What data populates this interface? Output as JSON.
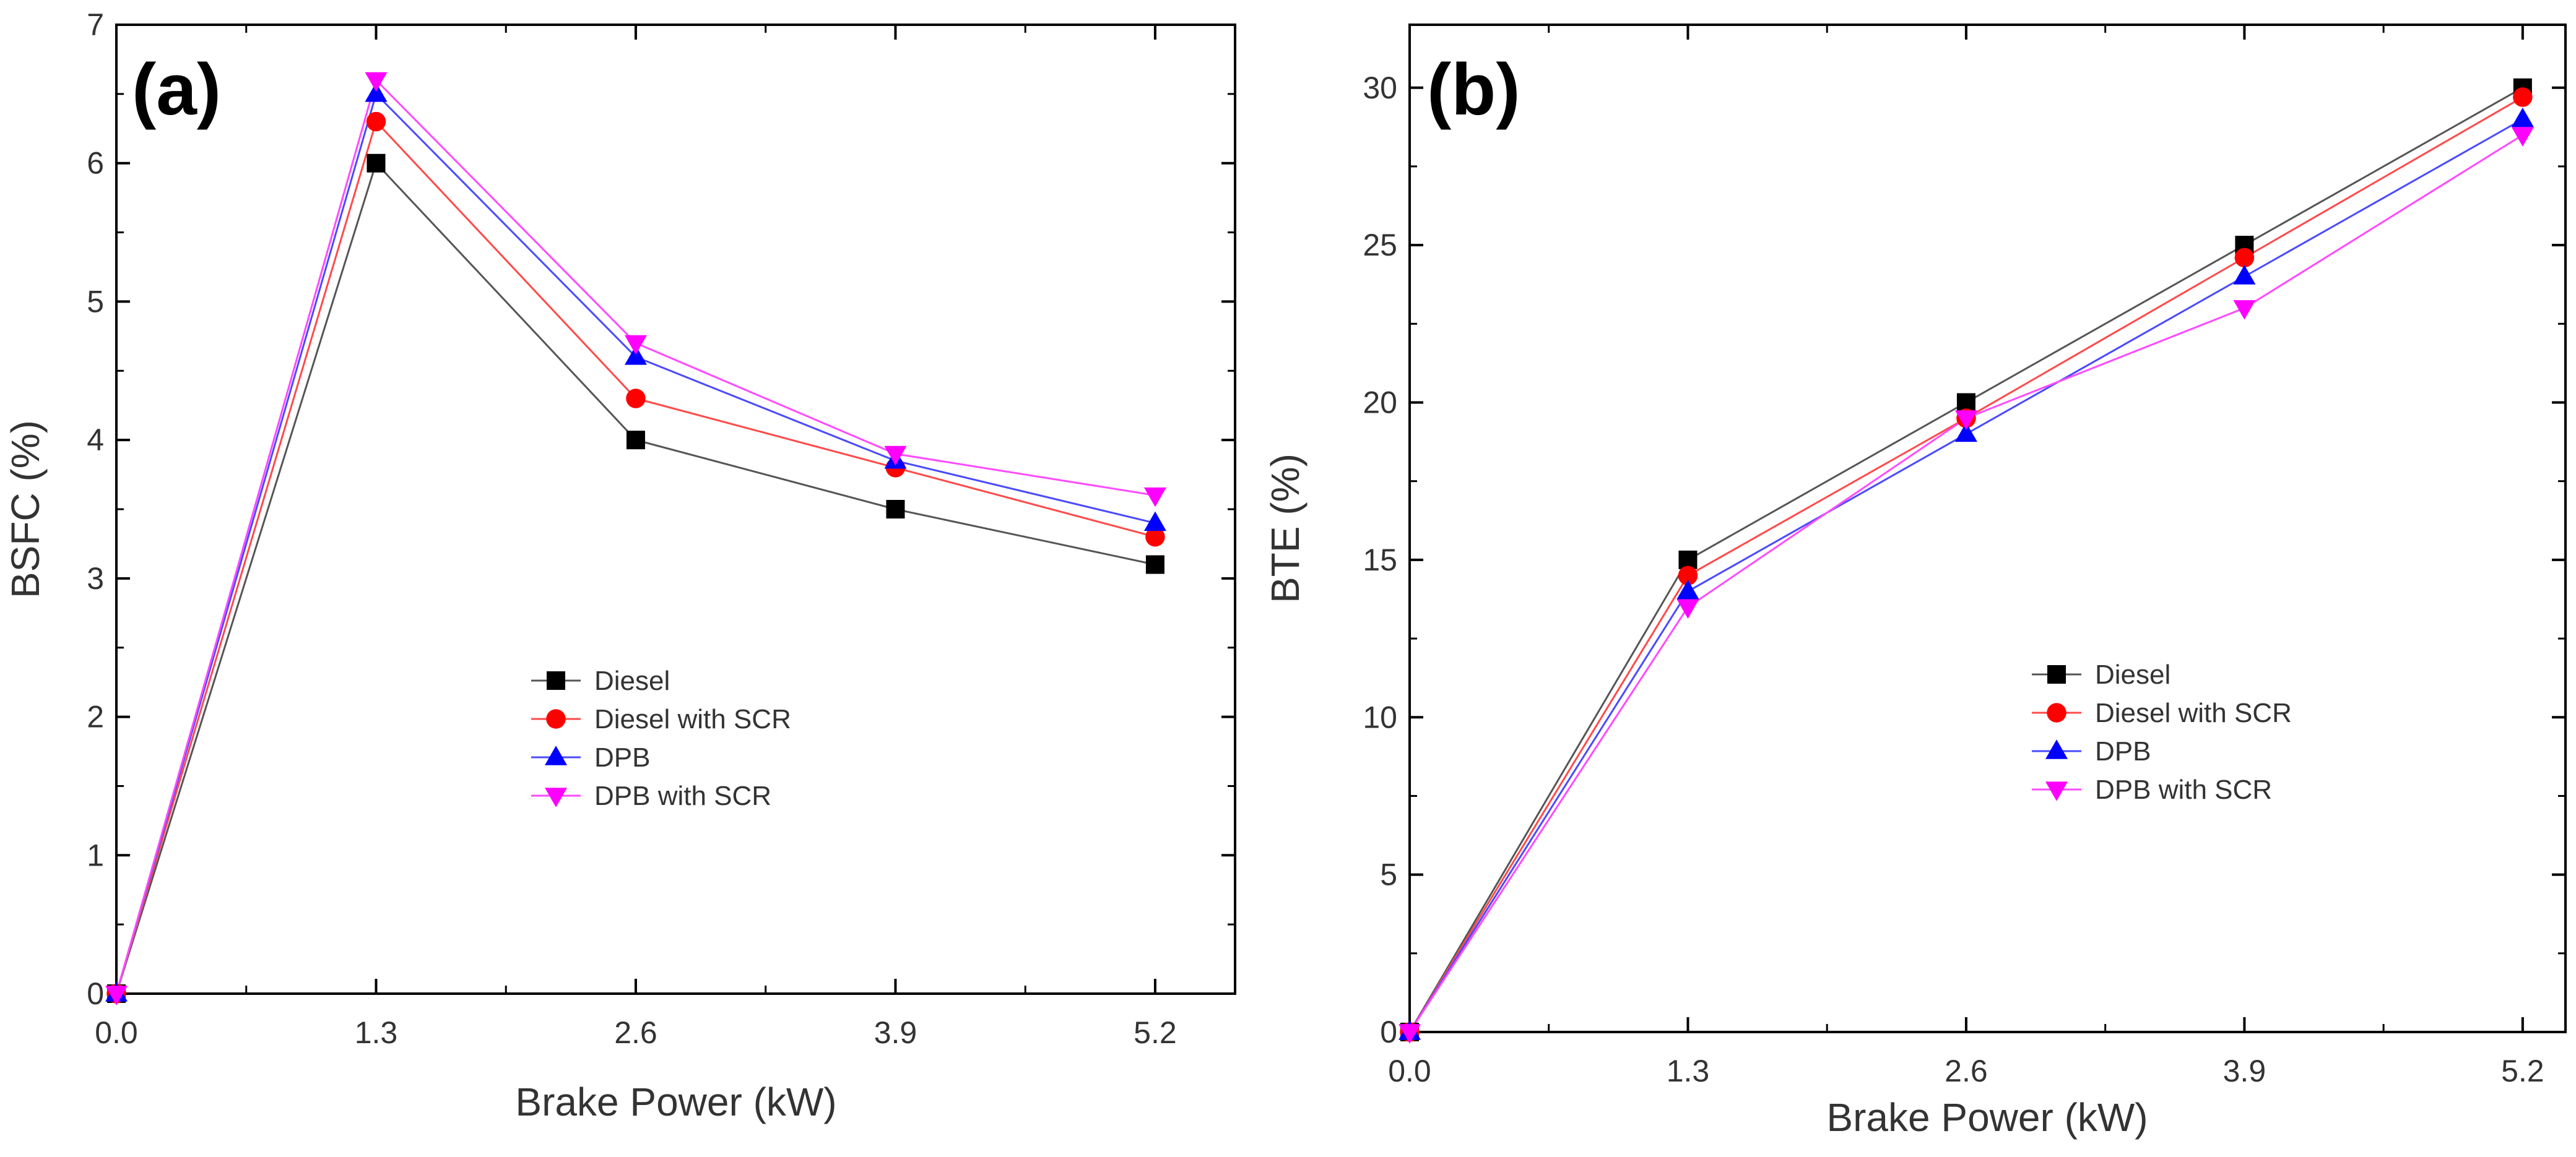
{
  "chart_data": [
    {
      "type": "line",
      "panel_label": "(a)",
      "xlabel": "Brake Power (kW)",
      "ylabel": "BSFC (%)",
      "x": [
        0.0,
        1.3,
        2.6,
        3.9,
        5.2
      ],
      "x_tick_labels": [
        "0.0",
        "1.3",
        "2.6",
        "3.9",
        "5.2"
      ],
      "xlim": [
        0.0,
        5.6
      ],
      "ylim": [
        0,
        7
      ],
      "y_ticks": [
        0,
        1,
        2,
        3,
        4,
        5,
        6,
        7
      ],
      "y_tick_labels": [
        "0",
        "1",
        "2",
        "3",
        "4",
        "5",
        "6",
        "7"
      ],
      "grid": false,
      "legend_position": "center",
      "series": [
        {
          "name": "Diesel",
          "marker": "square",
          "color": "#000000",
          "line_color": "#555555",
          "values": [
            0,
            6.0,
            4.0,
            3.5,
            3.1
          ]
        },
        {
          "name": "Diesel with SCR",
          "marker": "circle",
          "color": "#ff0000",
          "line_color": "#ff4a4a",
          "values": [
            0,
            6.3,
            4.3,
            3.8,
            3.3
          ]
        },
        {
          "name": "DPB",
          "marker": "triangle-up",
          "color": "#0000ff",
          "line_color": "#4a4aff",
          "values": [
            0,
            6.5,
            4.6,
            3.85,
            3.4
          ]
        },
        {
          "name": "DPB with SCR",
          "marker": "triangle-down",
          "color": "#ff00ff",
          "line_color": "#ff4aff",
          "values": [
            0,
            6.6,
            4.7,
            3.9,
            3.6
          ]
        }
      ]
    },
    {
      "type": "line",
      "panel_label": "(b)",
      "xlabel": "Brake Power (kW)",
      "ylabel": "BTE (%)",
      "x": [
        0.0,
        1.3,
        2.6,
        3.9,
        5.2
      ],
      "x_tick_labels": [
        "0.0",
        "1.3",
        "2.6",
        "3.9",
        "5.2"
      ],
      "xlim": [
        0.0,
        5.4
      ],
      "ylim": [
        0,
        32
      ],
      "y_ticks": [
        0,
        5,
        10,
        15,
        20,
        25,
        30
      ],
      "y_tick_labels": [
        "0",
        "5",
        "10",
        "15",
        "20",
        "25",
        "30"
      ],
      "grid": false,
      "legend_position": "center-right",
      "series": [
        {
          "name": "Diesel",
          "marker": "square",
          "color": "#000000",
          "line_color": "#555555",
          "values": [
            0,
            15.0,
            20.0,
            25.0,
            30.0
          ]
        },
        {
          "name": "Diesel with SCR",
          "marker": "circle",
          "color": "#ff0000",
          "line_color": "#ff4a4a",
          "values": [
            0,
            14.5,
            19.5,
            24.6,
            29.7
          ]
        },
        {
          "name": "DPB",
          "marker": "triangle-up",
          "color": "#0000ff",
          "line_color": "#4a4aff",
          "values": [
            0,
            14.0,
            19.0,
            24.0,
            29.0
          ]
        },
        {
          "name": "DPB with SCR",
          "marker": "triangle-down",
          "color": "#ff00ff",
          "line_color": "#ff4aff",
          "values": [
            0,
            13.5,
            19.5,
            23.0,
            28.5
          ]
        }
      ]
    }
  ]
}
